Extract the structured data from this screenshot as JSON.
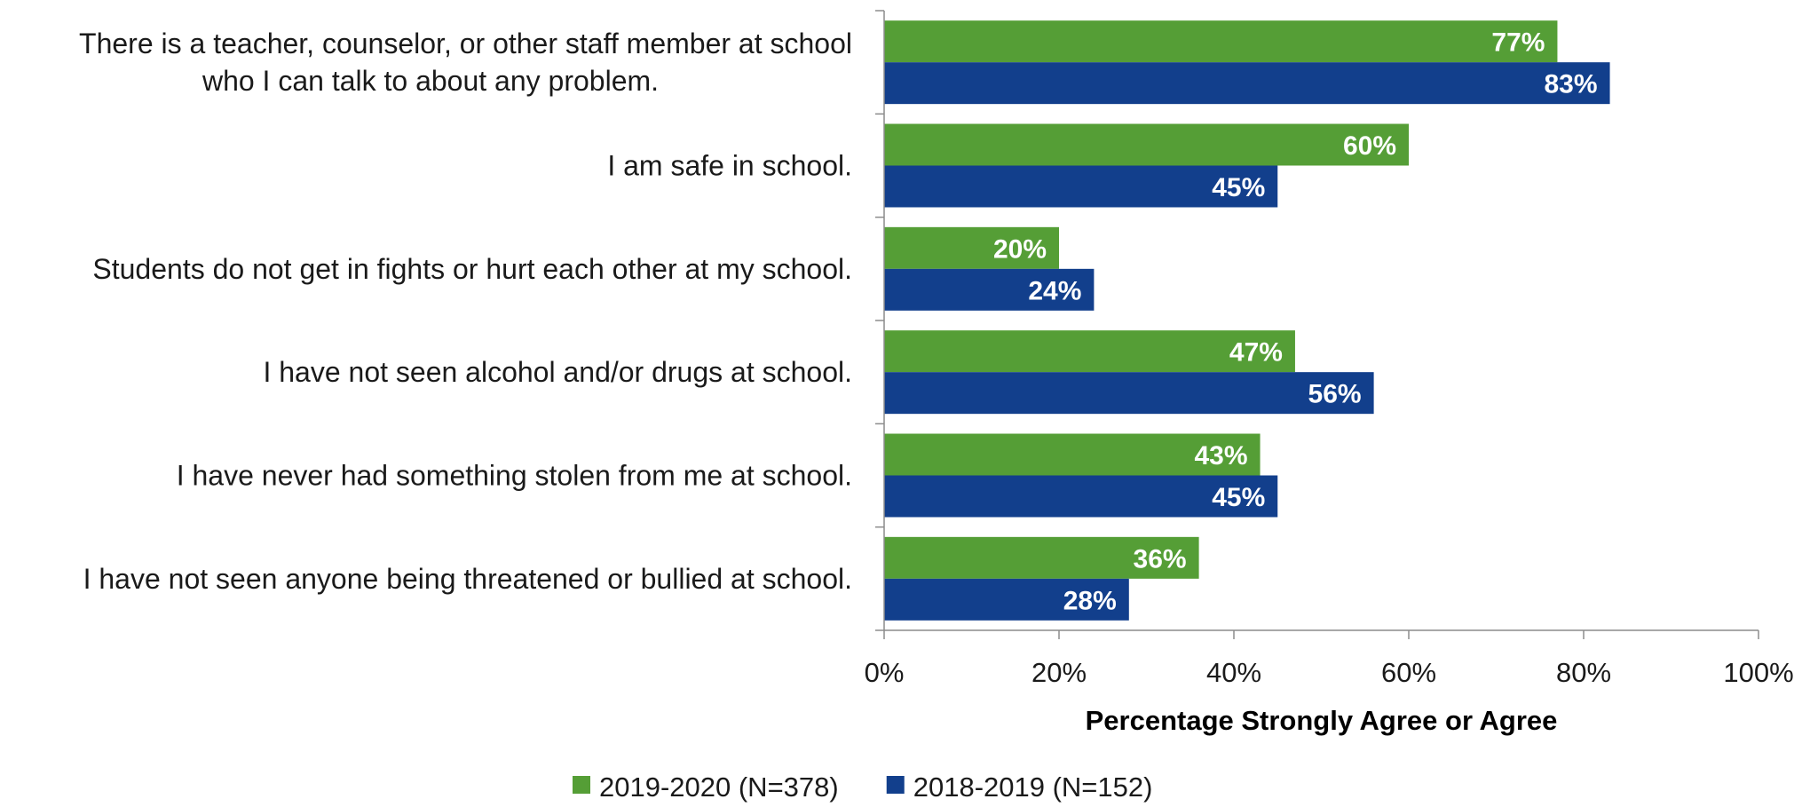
{
  "chart_data": {
    "type": "bar",
    "orientation": "horizontal",
    "categories": [
      [
        "There is a teacher, counselor, or other staff member at school",
        "who I can talk to about any problem."
      ],
      [
        "I am safe in school."
      ],
      [
        "Students do not get in fights or hurt each other at my school."
      ],
      [
        "I have not seen alcohol and/or drugs at school."
      ],
      [
        "I have never had something stolen from me at school."
      ],
      [
        "I have not seen anyone being threatened or bullied at school."
      ]
    ],
    "series": [
      {
        "name": "2019-2020 (N=378)",
        "color": "#559E36",
        "values": [
          77,
          60,
          20,
          47,
          43,
          36
        ],
        "value_labels": [
          "77%",
          "60%",
          "20%",
          "47%",
          "43%",
          "36%"
        ]
      },
      {
        "name": "2018-2019 (N=152)",
        "color": "#123F8C",
        "values": [
          83,
          45,
          24,
          56,
          45,
          28
        ],
        "value_labels": [
          "83%",
          "45%",
          "24%",
          "56%",
          "45%",
          "28%"
        ]
      }
    ],
    "xlim": [
      0,
      100
    ],
    "xticks": [
      0,
      20,
      40,
      60,
      80,
      100
    ],
    "xtick_labels": [
      "0%",
      "20%",
      "40%",
      "60%",
      "80%",
      "100%"
    ],
    "xlabel": "Percentage Strongly Agree or Agree",
    "ylabel": "",
    "title": "",
    "grid": false,
    "legend_position": "bottom"
  }
}
